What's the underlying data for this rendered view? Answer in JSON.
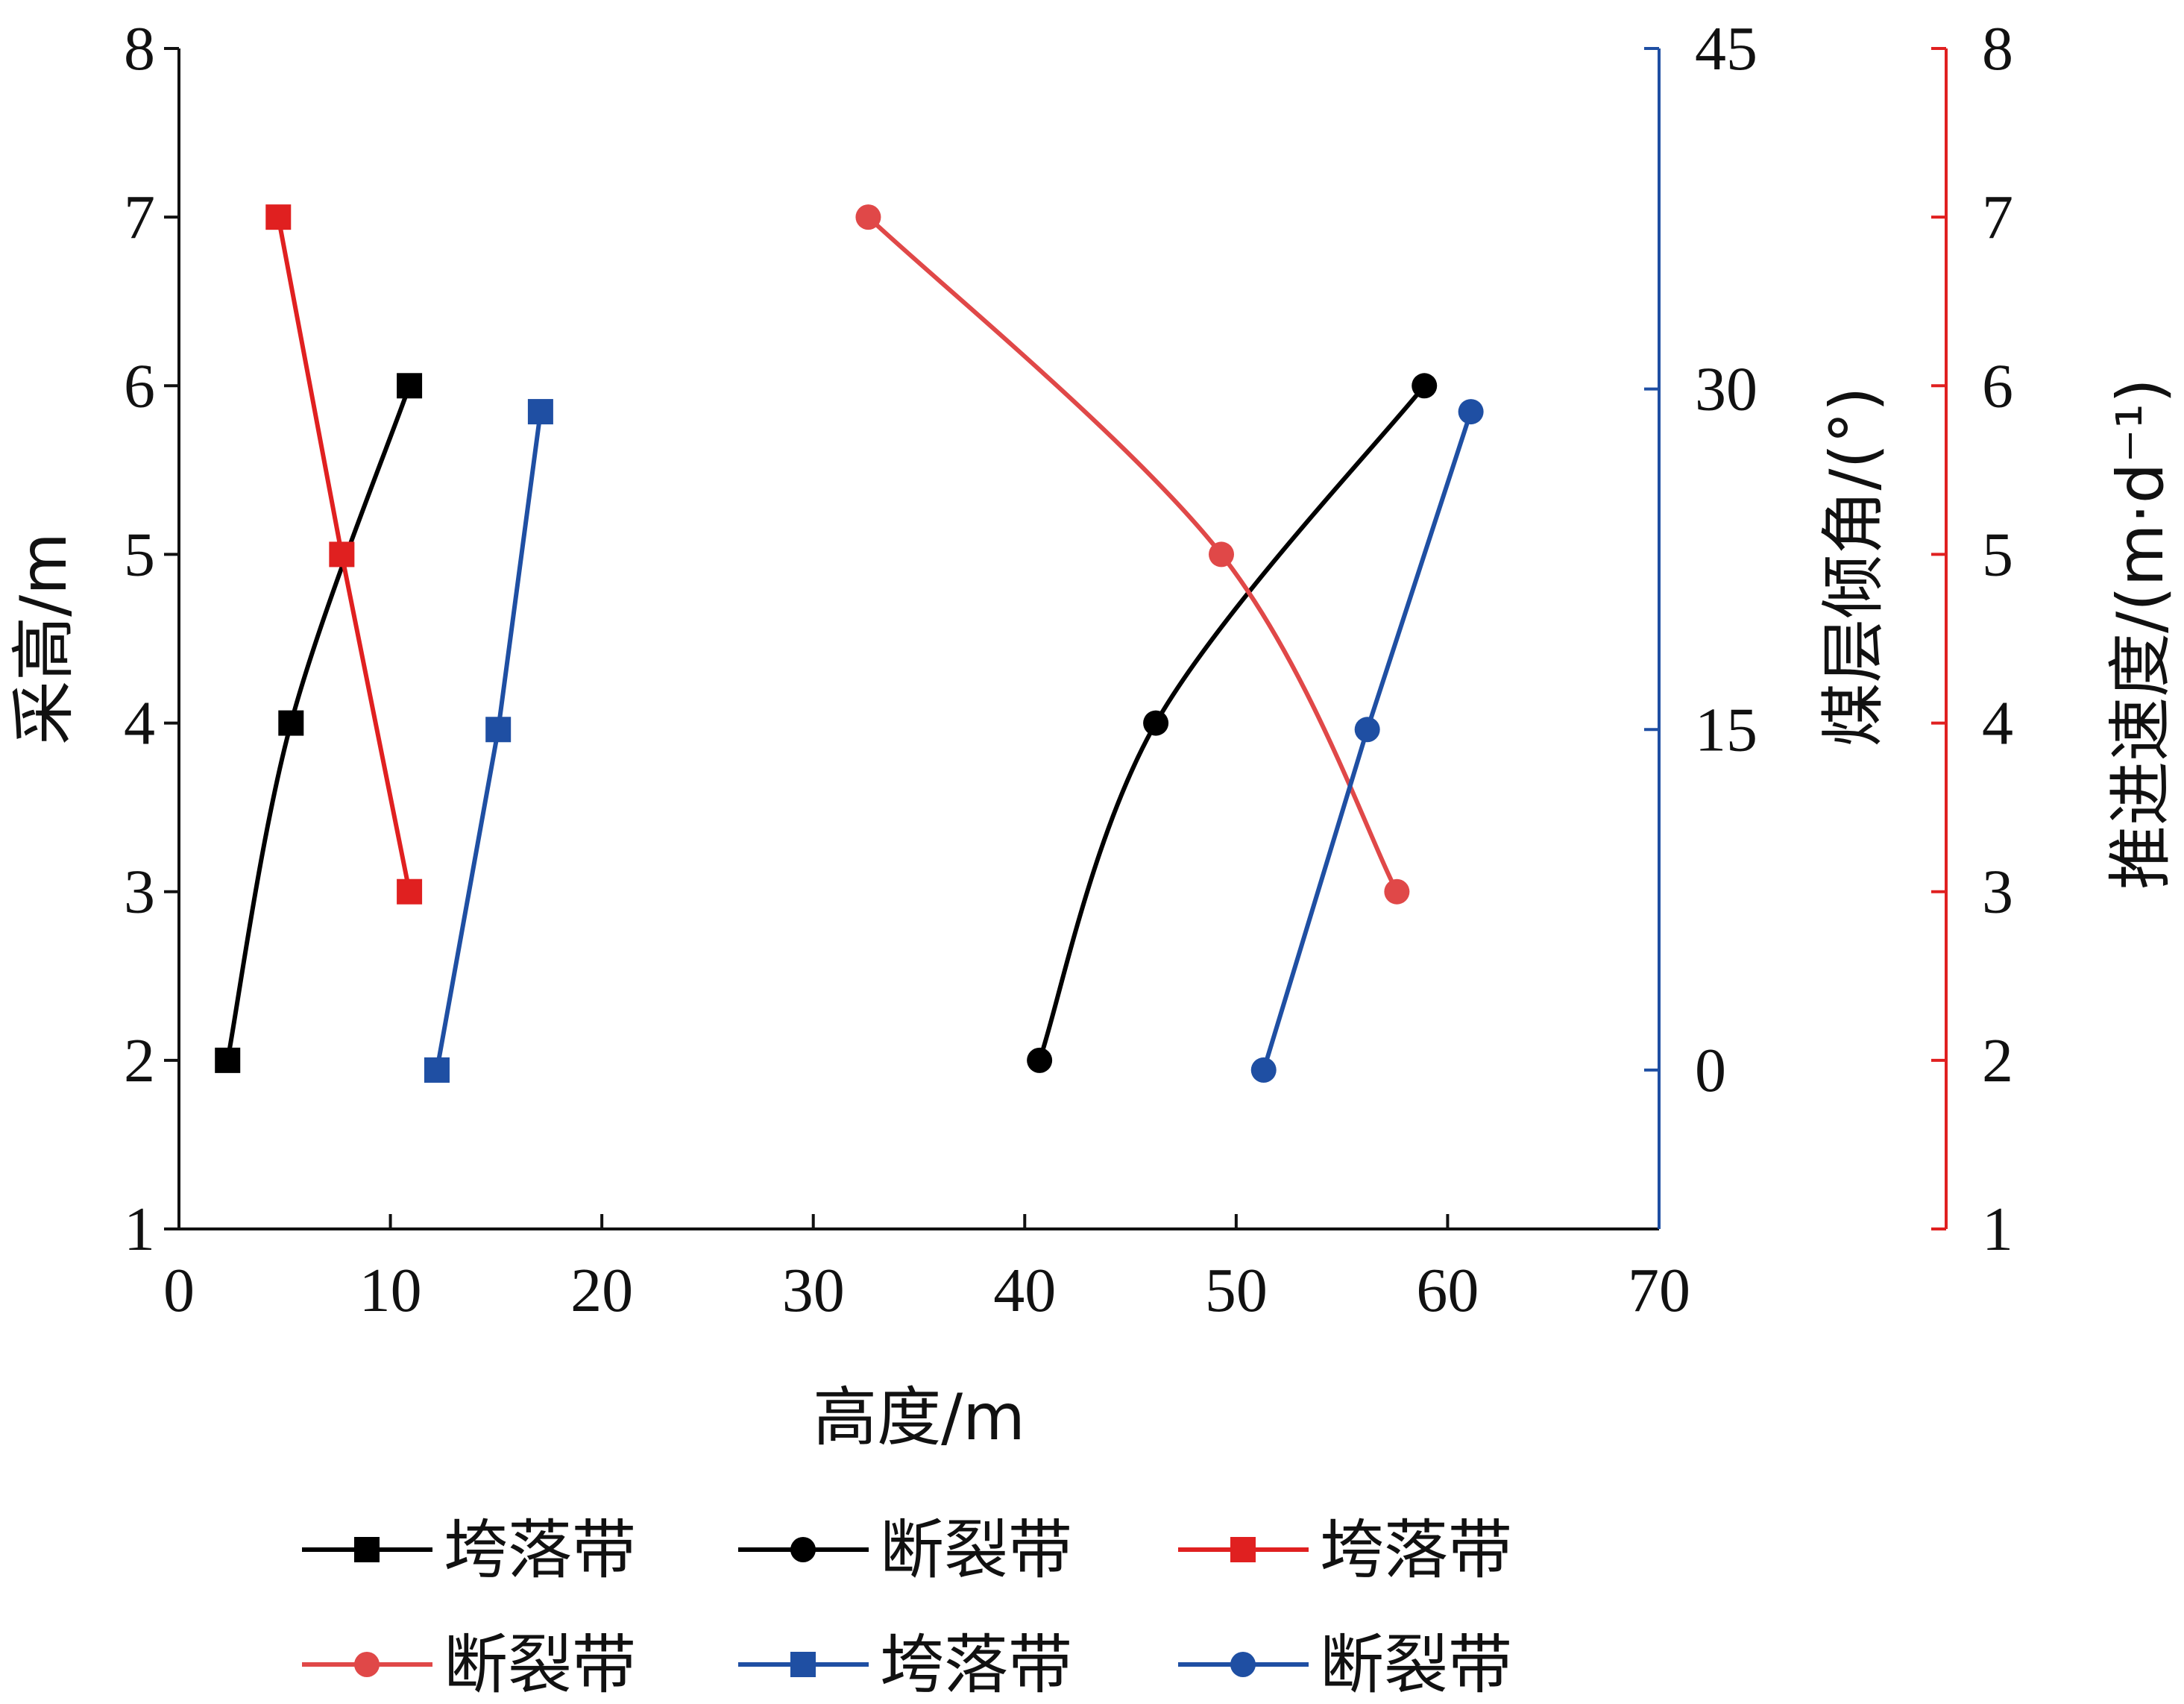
{
  "chart_data": {
    "type": "line",
    "xlabel": "高度/m",
    "xlim": [
      0,
      70
    ],
    "xticks": [
      "0",
      "10",
      "20",
      "30",
      "40",
      "50",
      "60",
      "70"
    ],
    "y_axes": {
      "left": {
        "label": "采高/m",
        "lim": [
          1,
          8
        ],
        "ticks": [
          "1",
          "2",
          "3",
          "4",
          "5",
          "6",
          "7",
          "8"
        ],
        "color": "#111111"
      },
      "right1": {
        "label": "煤层倾角/(°)",
        "lim": [
          -7,
          45
        ],
        "ticks": [
          "0",
          "15",
          "30",
          "45"
        ],
        "tick_values": [
          0,
          15,
          30,
          45
        ],
        "color": "#1f4fa3"
      },
      "right2": {
        "label": "推进速度/(m·d⁻¹)",
        "lim": [
          1,
          8
        ],
        "ticks": [
          "1",
          "2",
          "3",
          "4",
          "5",
          "6",
          "7",
          "8"
        ],
        "color": "#e02020"
      }
    },
    "series": [
      {
        "name": "垮落带",
        "axis": "left",
        "color": "#000000",
        "marker": "square",
        "smooth": true,
        "x": [
          2.3,
          5.3,
          10.9
        ],
        "y": [
          2,
          4,
          6
        ]
      },
      {
        "name": "断裂带",
        "axis": "left",
        "color": "#000000",
        "marker": "circle",
        "smooth": true,
        "x": [
          40.7,
          46.2,
          58.9
        ],
        "y": [
          2,
          4,
          6
        ]
      },
      {
        "name": "垮落带",
        "axis": "right2",
        "color": "#e02020",
        "marker": "square",
        "smooth": false,
        "x": [
          4.7,
          7.7,
          10.9
        ],
        "y": [
          7,
          5,
          3
        ]
      },
      {
        "name": "断裂带",
        "axis": "right2",
        "color": "#e04848",
        "marker": "circle",
        "smooth": true,
        "x": [
          32.6,
          49.3,
          57.6
        ],
        "y": [
          7,
          5,
          3
        ]
      },
      {
        "name": "垮落带",
        "axis": "right1",
        "color": "#1f4fa3",
        "marker": "square",
        "smooth": false,
        "x": [
          12.2,
          15.1,
          17.1
        ],
        "y": [
          0,
          15,
          29
        ]
      },
      {
        "name": "断裂带",
        "axis": "right1",
        "color": "#1f4fa3",
        "marker": "circle",
        "smooth": false,
        "x": [
          51.3,
          56.2,
          61.1
        ],
        "y": [
          0,
          15,
          29
        ]
      }
    ],
    "legend": {
      "placement": "bottom",
      "columns": 3
    }
  }
}
